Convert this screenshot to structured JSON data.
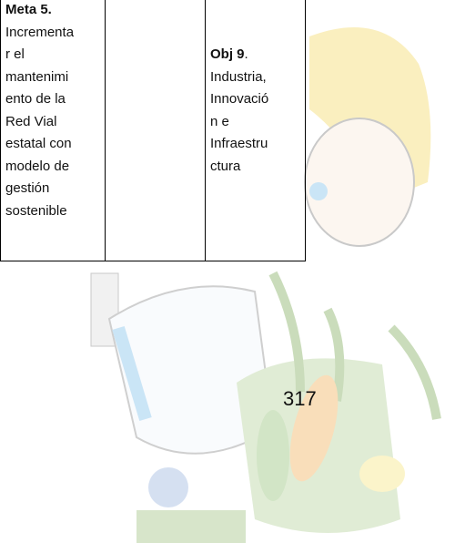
{
  "table": {
    "rows": [
      [
        {
          "heading": "Meta 5.",
          "lines": [
            "Incrementa",
            "r el",
            "mantenimi",
            "ento de la",
            "Red Vial",
            "estatal con",
            "modelo de",
            "gestión",
            "sostenible"
          ]
        },
        {
          "lines": []
        },
        {
          "heading": "Obj 9",
          "heading_tail": ".",
          "lines": [
            "Industria,",
            "Innovació",
            "n e",
            "Infraestru",
            "ctura"
          ]
        }
      ]
    ]
  },
  "footer": {
    "page_number": "317"
  }
}
